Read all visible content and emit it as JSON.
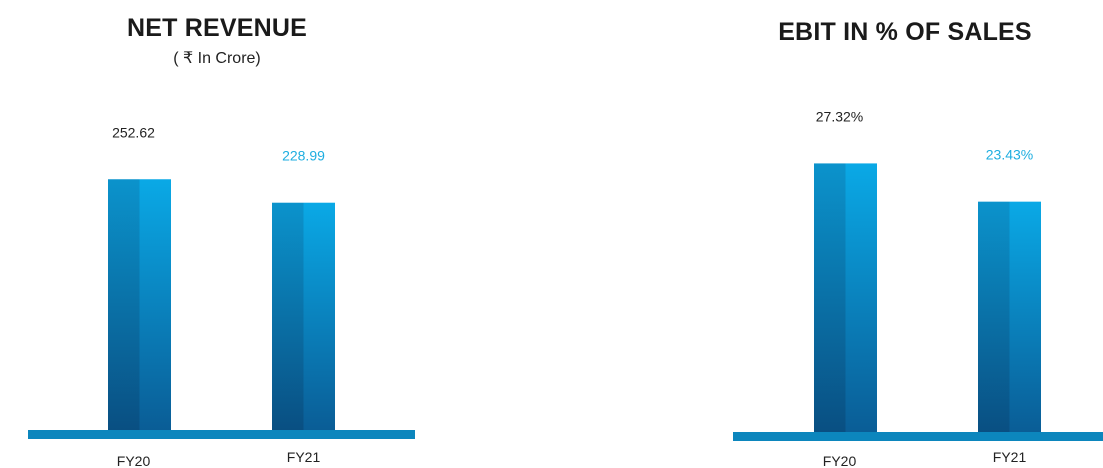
{
  "chart_data": [
    {
      "type": "bar",
      "title": "NET REVENUE",
      "subtitle": "( ₹ In Crore)",
      "categories": [
        "FY20",
        "FY21"
      ],
      "values": [
        252.62,
        228.99
      ],
      "value_labels": [
        "252.62",
        "228.99"
      ],
      "label_colors": [
        "#222222",
        "#1eaee0"
      ],
      "ylim": [
        0,
        270
      ],
      "grid": false,
      "legend": "none"
    },
    {
      "type": "bar",
      "title": "EBIT IN % OF SALES",
      "categories": [
        "FY20",
        "FY21"
      ],
      "values": [
        27.32,
        23.43
      ],
      "value_labels": [
        "27.32%",
        "23.43%"
      ],
      "label_colors": [
        "#222222",
        "#1eaee0"
      ],
      "ylim": [
        0,
        29.6
      ],
      "grid": false,
      "legend": "none"
    }
  ],
  "colors": {
    "bar_top": "#0aa9e6",
    "bar_bottom": "#0a5a92",
    "baseline": "#0c86bd",
    "text": "#222222",
    "highlight": "#1eaee0"
  }
}
